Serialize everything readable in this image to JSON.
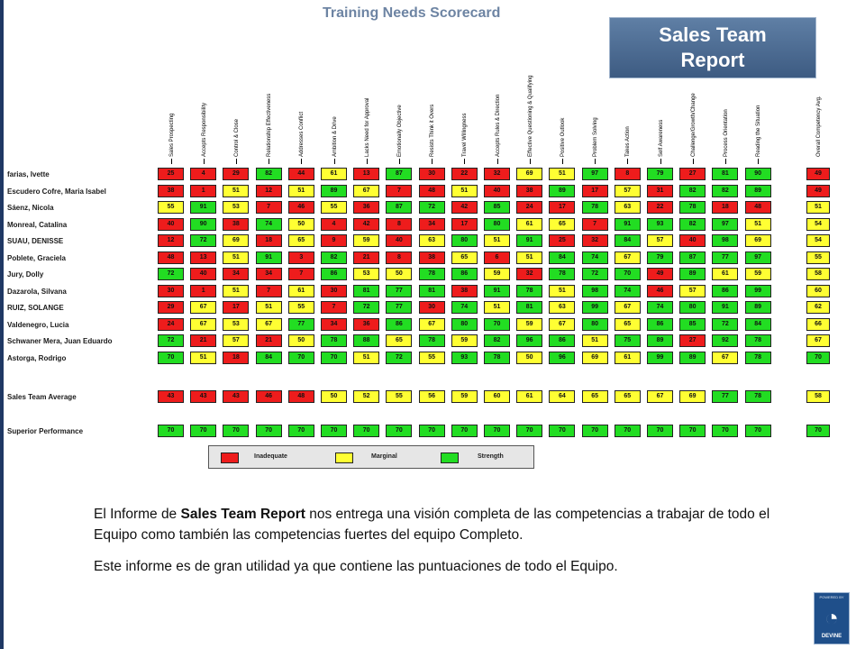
{
  "slide": {
    "scorecard_title": "Training Needs Scorecard",
    "report_title": "Sales Team Report",
    "description_paragraph_1_prefix": "El Informe de ",
    "description_paragraph_1_bold": "Sales Team Report",
    "description_paragraph_1_suffix": " nos entrega una visión completa de las competencias a trabajar de todo el Equipo como también las competencias fuertes del equipo Completo.",
    "description_paragraph_2": "Este informe es de gran utilidad ya que contiene las puntuaciones de todo el Equipo."
  },
  "logo": {
    "top_text": "POWERED BY",
    "bottom_text": "DEVINE",
    "icon": "devine-logo-icon"
  },
  "colors": {
    "inadequate": "#ee1c1c",
    "marginal": "#ffff33",
    "strength": "#22dd22",
    "accent": "#3d5b82"
  },
  "chart_data": {
    "type": "table",
    "title": "Training Needs Scorecard",
    "competencies": [
      "Sales Prospecting",
      "Accepts Responsibility",
      "Control & Close",
      "Relationship Effectiveness",
      "Addresses Conflict",
      "Ambition & Drive",
      "Lacks Need for Approval",
      "Emotionally Objective",
      "Resists Think it Overs",
      "Travel Willingness",
      "Accepts Rules & Direction",
      "Effective Questioning & Qualifying",
      "Positive Outlook",
      "Problem Solving",
      "Takes Action",
      "Self Awareness",
      "Challenge/Growth/Change",
      "Process Orientation",
      "Reading the Situation"
    ],
    "overall_label": "Overall Competency Avg.",
    "rows": [
      {
        "name": "farias, Ivette",
        "scores": [
          25,
          4,
          29,
          82,
          44,
          61,
          13,
          87,
          30,
          22,
          32,
          69,
          51,
          97,
          8,
          79,
          27,
          81,
          90
        ],
        "overall": 49
      },
      {
        "name": "Escudero Cofre, Maria Isabel",
        "scores": [
          38,
          1,
          51,
          12,
          51,
          89,
          67,
          7,
          48,
          51,
          40,
          38,
          89,
          17,
          57,
          31,
          82,
          82,
          89
        ],
        "overall": 49
      },
      {
        "name": "Sáenz, Nicola",
        "scores": [
          55,
          91,
          53,
          7,
          46,
          55,
          36,
          87,
          72,
          42,
          85,
          24,
          17,
          78,
          63,
          22,
          78,
          18,
          48
        ],
        "overall": 51
      },
      {
        "name": "Monreal, Catalina",
        "scores": [
          40,
          90,
          38,
          74,
          50,
          4,
          42,
          8,
          34,
          17,
          80,
          61,
          65,
          7,
          91,
          93,
          82,
          97,
          51
        ],
        "overall": 54
      },
      {
        "name": "SUAU, DENISSE",
        "scores": [
          12,
          72,
          69,
          18,
          65,
          9,
          59,
          40,
          63,
          80,
          51,
          91,
          25,
          32,
          84,
          57,
          40,
          98,
          69
        ],
        "overall": 54
      },
      {
        "name": "Poblete, Graciela",
        "scores": [
          48,
          13,
          51,
          91,
          3,
          82,
          21,
          8,
          38,
          65,
          6,
          51,
          84,
          74,
          67,
          79,
          87,
          77,
          97
        ],
        "overall": 55
      },
      {
        "name": "Jury, Dolly",
        "scores": [
          72,
          40,
          34,
          34,
          7,
          86,
          53,
          50,
          78,
          86,
          59,
          32,
          78,
          72,
          70,
          49,
          89,
          61,
          59
        ],
        "overall": 58
      },
      {
        "name": "Dazarola, Silvana",
        "scores": [
          30,
          1,
          51,
          7,
          61,
          30,
          81,
          77,
          81,
          38,
          91,
          78,
          51,
          98,
          74,
          46,
          57,
          86,
          99
        ],
        "overall": 60
      },
      {
        "name": "RUIZ, SOLANGE",
        "scores": [
          29,
          67,
          17,
          51,
          55,
          7,
          72,
          77,
          30,
          74,
          51,
          81,
          63,
          99,
          67,
          74,
          80,
          91,
          89
        ],
        "overall": 62
      },
      {
        "name": "Valdenegro, Lucia",
        "scores": [
          24,
          67,
          53,
          67,
          77,
          34,
          36,
          86,
          67,
          80,
          70,
          59,
          67,
          80,
          65,
          86,
          85,
          72,
          84
        ],
        "overall": 66
      },
      {
        "name": "Schwaner Mera, Juan Eduardo",
        "scores": [
          72,
          21,
          57,
          21,
          50,
          78,
          88,
          65,
          78,
          59,
          82,
          96,
          86,
          51,
          75,
          89,
          27,
          92,
          78
        ],
        "overall": 67
      },
      {
        "name": "Astorga, Rodrigo",
        "scores": [
          70,
          51,
          18,
          84,
          70,
          70,
          51,
          72,
          55,
          93,
          78,
          50,
          96,
          69,
          61,
          99,
          89,
          67,
          78
        ],
        "overall": 70
      }
    ],
    "average": {
      "name": "Sales Team Average",
      "scores": [
        43,
        43,
        43,
        46,
        48,
        50,
        52,
        55,
        56,
        59,
        60,
        61,
        64,
        65,
        65,
        67,
        69,
        77,
        78
      ],
      "overall": 58
    },
    "superior": {
      "name": "Superior Performance",
      "scores": [
        70,
        70,
        70,
        70,
        70,
        70,
        70,
        70,
        70,
        70,
        70,
        70,
        70,
        70,
        70,
        70,
        70,
        70,
        70
      ],
      "overall": 70
    },
    "thresholds": {
      "inadequate_below": 49,
      "marginal_below": 69
    },
    "legend": [
      {
        "label": "Inadequate",
        "color": "#ee1c1c"
      },
      {
        "label": "Marginal",
        "color": "#ffff33"
      },
      {
        "label": "Strength",
        "color": "#22dd22"
      }
    ]
  }
}
